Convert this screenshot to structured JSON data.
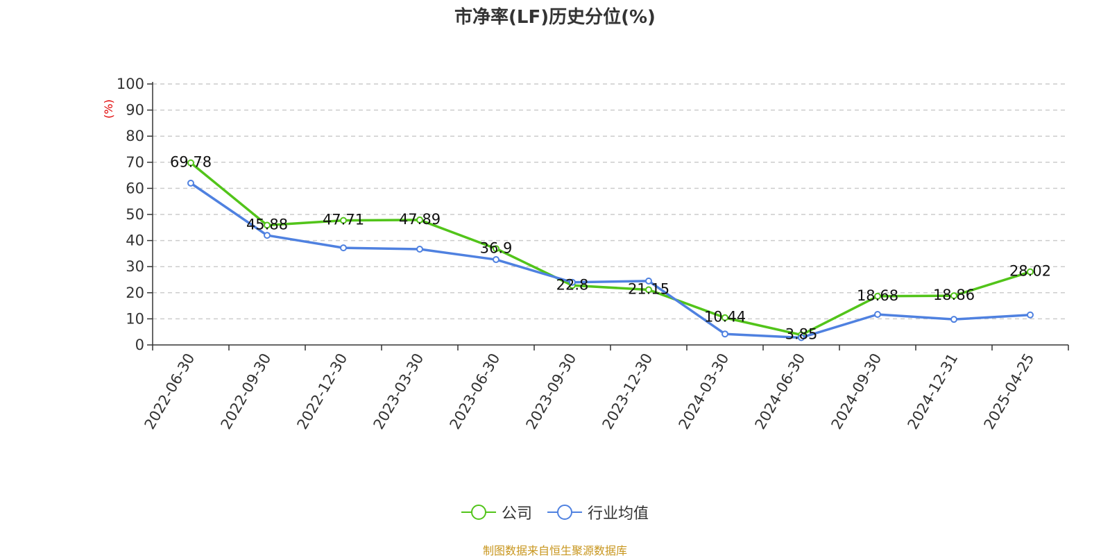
{
  "title": "市净率(LF)历史分位(%)",
  "source": "制图数据来自恒生聚源数据库",
  "colors": {
    "company": "#52c41a",
    "industry": "#4f81e0",
    "ylabel": "#e00000"
  },
  "chart_data": {
    "type": "line",
    "title": "市净率(LF)历史分位(%)",
    "xlabel": "",
    "ylabel": "(%)",
    "ylim": [
      0,
      100
    ],
    "yticks": [
      0,
      10,
      20,
      30,
      40,
      50,
      60,
      70,
      80,
      90,
      100
    ],
    "grid": true,
    "legend_position": "bottom",
    "categories": [
      "2022-06-30",
      "2022-09-30",
      "2022-12-30",
      "2023-03-30",
      "2023-06-30",
      "2023-09-30",
      "2023-12-30",
      "2024-03-30",
      "2024-06-30",
      "2024-09-30",
      "2024-12-31",
      "2025-04-25"
    ],
    "series": [
      {
        "name": "公司",
        "values": [
          69.78,
          45.88,
          47.71,
          47.89,
          36.9,
          22.8,
          21.15,
          10.44,
          3.85,
          18.68,
          18.86,
          28.02
        ],
        "labels": [
          "69.78",
          "45.88",
          "47.71",
          "47.89",
          "36.9",
          "22.8",
          "21.15",
          "10.44",
          "3.85",
          "18.68",
          "18.86",
          "28.02"
        ]
      },
      {
        "name": "行业均值",
        "values": [
          62.0,
          42.0,
          37.2,
          36.7,
          32.7,
          24.0,
          24.5,
          4.2,
          2.8,
          11.7,
          9.8,
          11.5
        ]
      }
    ]
  }
}
